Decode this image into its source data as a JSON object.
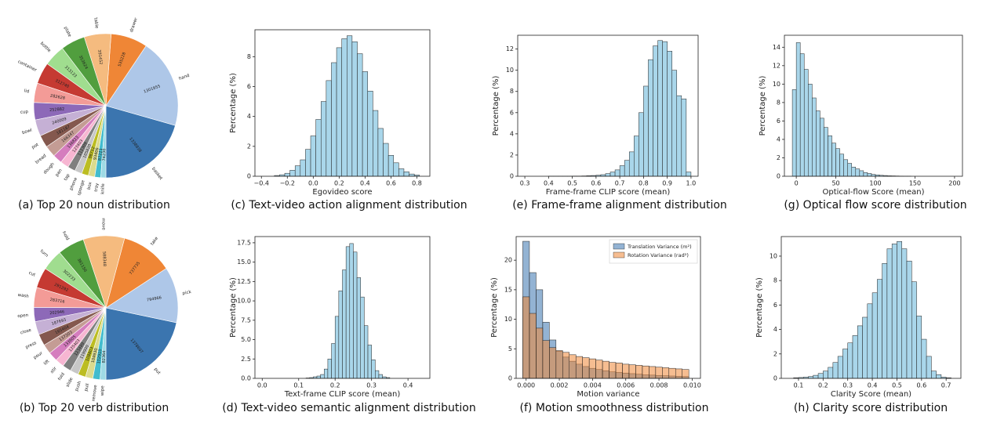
{
  "chart_data": [
    {
      "type": "pie",
      "title": "(a) Top 20 noun distribution",
      "categories": [
        "basket",
        "hand",
        "drawer",
        "table",
        "plate",
        "bottle",
        "container",
        "lid",
        "cup",
        "bowl",
        "pot",
        "bread",
        "dough",
        "pan",
        "tap",
        "phone",
        "sponge",
        "box",
        "tray",
        "knife"
      ],
      "values": [
        1338838,
        1301655,
        535228,
        391452,
        353624,
        313133,
        312740,
        282628,
        252882,
        240009,
        181187,
        166347,
        136823,
        123403,
        112309,
        105820,
        98712,
        93406,
        87221,
        74230
      ],
      "colors": [
        "#3b75af",
        "#aec7e8",
        "#ef8636",
        "#f5bb7f",
        "#519e3e",
        "#a0dd8f",
        "#c53a32",
        "#f39b97",
        "#8d69b8",
        "#c5b0d5",
        "#84584e",
        "#c49c94",
        "#d57dbe",
        "#f7b6d2",
        "#7f7f7f",
        "#c7c7c7",
        "#bcbd22",
        "#dbdb8d",
        "#42bcce",
        "#9edae5"
      ]
    },
    {
      "type": "pie",
      "title": "(b) Top 20 verb distribution",
      "categories": [
        "put",
        "pick",
        "take",
        "move",
        "hold",
        "turn",
        "cut",
        "wash",
        "open",
        "close",
        "press",
        "pour",
        "lift",
        "stir",
        "fold",
        "slide",
        "push",
        "pull",
        "remove",
        "wipe"
      ],
      "values": [
        1378607,
        794966,
        737735,
        588348,
        381150,
        302233,
        291292,
        283716,
        202946,
        187693,
        165404,
        137203,
        133605,
        125403,
        123489,
        119900,
        108803,
        104930,
        102910,
        82364
      ],
      "colors": [
        "#3b75af",
        "#aec7e8",
        "#ef8636",
        "#f5bb7f",
        "#519e3e",
        "#a0dd8f",
        "#c53a32",
        "#f39b97",
        "#8d69b8",
        "#c5b0d5",
        "#84584e",
        "#c49c94",
        "#d57dbe",
        "#f7b6d2",
        "#7f7f7f",
        "#c7c7c7",
        "#bcbd22",
        "#dbdb8d",
        "#42bcce",
        "#9edae5"
      ]
    },
    {
      "type": "histogram",
      "title": "(c) Text-video action alignment distribution",
      "xlabel": "Egovideo score",
      "ylabel": "Percentage (%)",
      "color": "#a9d6ea",
      "bins": [
        -0.3,
        -0.26,
        -0.22,
        -0.18,
        -0.14,
        -0.1,
        -0.06,
        -0.02,
        0.02,
        0.06,
        0.1,
        0.14,
        0.18,
        0.22,
        0.26,
        0.3,
        0.34,
        0.38,
        0.42,
        0.46,
        0.5,
        0.54,
        0.58,
        0.62,
        0.66,
        0.7,
        0.74,
        0.78,
        0.82
      ],
      "values": [
        0.05,
        0.1,
        0.2,
        0.4,
        0.7,
        1.1,
        1.8,
        2.7,
        3.8,
        5.0,
        6.4,
        7.6,
        8.6,
        9.2,
        9.4,
        9.0,
        8.2,
        7.0,
        5.7,
        4.4,
        3.2,
        2.2,
        1.4,
        0.9,
        0.5,
        0.3,
        0.15,
        0.08
      ],
      "xlim": [
        -0.45,
        0.9
      ],
      "ylim": [
        0,
        9.8
      ],
      "xticks": [
        {
          "value": -0.4,
          "label": "−0.4"
        },
        {
          "value": -0.2,
          "label": "−0.2"
        },
        {
          "value": 0,
          "label": "0.0"
        },
        0.2,
        0.4,
        0.6,
        0.8
      ],
      "yticks": [
        0,
        2,
        4,
        6,
        8
      ]
    },
    {
      "type": "histogram",
      "title": "(d) Text-video semantic alignment distribution",
      "xlabel": "Text-frame CLIP score (mean)",
      "ylabel": "Percentage (%)",
      "color": "#a9d6ea",
      "bins": [
        0.12,
        0.13,
        0.14,
        0.15,
        0.16,
        0.17,
        0.18,
        0.19,
        0.2,
        0.21,
        0.22,
        0.23,
        0.24,
        0.25,
        0.26,
        0.27,
        0.28,
        0.29,
        0.3,
        0.31,
        0.32,
        0.33,
        0.34,
        0.35
      ],
      "values": [
        0.05,
        0.1,
        0.2,
        0.3,
        0.5,
        1.2,
        2.5,
        4.5,
        8.0,
        11.3,
        14.0,
        17.0,
        17.4,
        16.3,
        13.0,
        10.5,
        6.8,
        4.3,
        2.4,
        1.0,
        0.5,
        0.2,
        0.1
      ],
      "xlim": [
        -0.02,
        0.46
      ],
      "ylim": [
        0,
        18.3
      ],
      "xticks": [
        {
          "value": 0,
          "label": "0.0"
        },
        0.1,
        0.2,
        0.3,
        0.4
      ],
      "yticks": [
        {
          "value": 0,
          "label": "0.0"
        },
        2.5,
        {
          "value": 5,
          "label": "5.0"
        },
        7.5,
        {
          "value": 10,
          "label": "10.0"
        },
        12.5,
        {
          "value": 15,
          "label": "15.0"
        },
        17.5
      ]
    },
    {
      "type": "histogram",
      "title": "(e) Frame-frame alignment distribution",
      "xlabel": "Frame-frame CLIP score (mean)",
      "ylabel": "Percentage (%)",
      "color": "#a9d6ea",
      "bins": [
        0.4,
        0.42,
        0.44,
        0.46,
        0.48,
        0.5,
        0.52,
        0.54,
        0.56,
        0.58,
        0.6,
        0.62,
        0.64,
        0.66,
        0.68,
        0.7,
        0.72,
        0.74,
        0.76,
        0.78,
        0.8,
        0.82,
        0.84,
        0.86,
        0.88,
        0.9,
        0.92,
        0.94,
        0.96,
        0.98,
        1.0
      ],
      "values": [
        0.01,
        0.01,
        0.01,
        0.01,
        0.01,
        0.02,
        0.02,
        0.03,
        0.05,
        0.07,
        0.1,
        0.15,
        0.25,
        0.4,
        0.6,
        1.0,
        1.5,
        2.3,
        3.8,
        6.0,
        8.5,
        11.0,
        12.3,
        12.8,
        12.7,
        11.8,
        10.0,
        7.6,
        7.3,
        0.4
      ],
      "xlim": [
        0.27,
        1.03
      ],
      "ylim": [
        0,
        13.3
      ],
      "xticks": [
        0.3,
        0.4,
        0.5,
        0.6,
        0.7,
        0.8,
        0.9,
        {
          "value": 1,
          "label": "1.0"
        }
      ],
      "yticks": [
        0,
        2,
        4,
        6,
        8,
        10,
        12
      ]
    },
    {
      "type": "histogram",
      "title": "(f) Motion smoothness distribution",
      "xlabel": "Motion variance",
      "ylabel": "Percentage (%)",
      "legend": "upper right",
      "bins": [
        -0.0002,
        0.0002,
        0.0006,
        0.001,
        0.0014,
        0.0018,
        0.0022,
        0.0026,
        0.003,
        0.0034,
        0.0038,
        0.0042,
        0.0046,
        0.005,
        0.0054,
        0.0058,
        0.0062,
        0.0066,
        0.007,
        0.0074,
        0.0078,
        0.0082,
        0.0086,
        0.009,
        0.0094,
        0.0098
      ],
      "series": [
        {
          "name": "Translation Variance (m²)",
          "color": "#3b75af",
          "values": [
            23.2,
            17.9,
            15.0,
            9.5,
            6.5,
            4.6,
            3.6,
            2.9,
            2.4,
            2.0,
            1.7,
            1.5,
            1.3,
            1.1,
            1.0,
            0.9,
            0.8,
            0.7,
            0.6,
            0.55,
            0.5,
            0.45,
            0.4,
            0.35,
            0.3
          ]
        },
        {
          "name": "Rotation Variance (rad²)",
          "color": "#ef8636",
          "values": [
            13.8,
            11.0,
            8.5,
            6.4,
            5.2,
            4.7,
            4.4,
            4.0,
            3.7,
            3.5,
            3.3,
            3.1,
            2.9,
            2.7,
            2.6,
            2.4,
            2.3,
            2.2,
            2.1,
            2.0,
            1.9,
            1.8,
            1.7,
            1.6,
            1.5
          ]
        }
      ],
      "xlim": [
        -0.0006,
        0.0105
      ],
      "ylim": [
        0,
        24
      ],
      "xticks": [
        {
          "value": 0,
          "label": "0.000"
        },
        {
          "value": 0.002,
          "label": "0.002"
        },
        {
          "value": 0.004,
          "label": "0.004"
        },
        {
          "value": 0.006,
          "label": "0.006"
        },
        {
          "value": 0.008,
          "label": "0.008"
        },
        {
          "value": 0.01,
          "label": "0.010"
        }
      ],
      "yticks": [
        0,
        5,
        10,
        15,
        20
      ]
    },
    {
      "type": "histogram",
      "title": "(g) Optical flow score distribution",
      "xlabel": "Optical-flow Score (mean)",
      "ylabel": "Percentage (%)",
      "color": "#a9d6ea",
      "bins": [
        -5,
        0,
        5,
        10,
        15,
        20,
        25,
        30,
        35,
        40,
        45,
        50,
        55,
        60,
        65,
        70,
        75,
        80,
        85,
        90,
        95,
        100,
        105,
        110,
        115,
        120,
        125,
        130,
        135,
        140,
        145
      ],
      "values": [
        9.4,
        14.5,
        13.3,
        11.6,
        10.0,
        8.5,
        7.1,
        6.3,
        5.3,
        4.4,
        3.6,
        3.0,
        2.4,
        1.8,
        1.4,
        1.0,
        0.8,
        0.6,
        0.4,
        0.3,
        0.2,
        0.15,
        0.1,
        0.08,
        0.05,
        0.04,
        0.03,
        0.02,
        0.01,
        0.01
      ],
      "xlim": [
        -15,
        210
      ],
      "ylim": [
        0,
        15.3
      ],
      "xticks": [
        0,
        50,
        100,
        150,
        200
      ],
      "yticks": [
        0,
        2,
        4,
        6,
        8,
        10,
        12,
        14
      ]
    },
    {
      "type": "histogram",
      "title": "(h) Clarity score distribution",
      "xlabel": "Clarity Score (mean)",
      "ylabel": "Percentage (%)",
      "color": "#a9d6ea",
      "bins": [
        0.08,
        0.1,
        0.12,
        0.14,
        0.16,
        0.18,
        0.2,
        0.22,
        0.24,
        0.26,
        0.28,
        0.3,
        0.32,
        0.34,
        0.36,
        0.38,
        0.4,
        0.42,
        0.44,
        0.46,
        0.48,
        0.5,
        0.52,
        0.54,
        0.56,
        0.58,
        0.6,
        0.62,
        0.64,
        0.66,
        0.68,
        0.7,
        0.72
      ],
      "values": [
        0.05,
        0.07,
        0.1,
        0.15,
        0.25,
        0.4,
        0.6,
        0.9,
        1.3,
        1.8,
        2.4,
        2.9,
        3.5,
        4.3,
        5.0,
        6.1,
        7.0,
        8.1,
        9.4,
        10.6,
        11.0,
        11.2,
        10.6,
        9.6,
        7.9,
        5.1,
        3.2,
        1.8,
        0.6,
        0.3,
        0.1,
        0.05
      ],
      "xlim": [
        0.03,
        0.76
      ],
      "ylim": [
        0,
        11.6
      ],
      "xticks": [
        0.1,
        0.2,
        0.3,
        0.4,
        0.5,
        0.6,
        0.7
      ],
      "yticks": [
        0,
        2,
        4,
        6,
        8,
        10
      ]
    }
  ]
}
